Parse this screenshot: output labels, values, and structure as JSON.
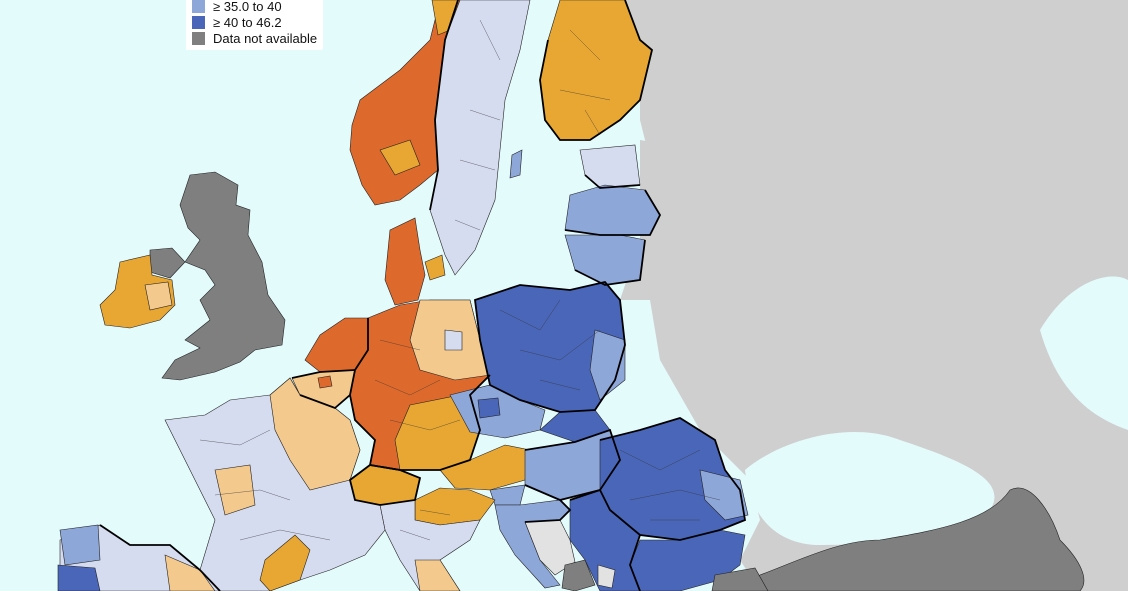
{
  "legend": {
    "items": [
      {
        "label": "≥ 35.0 to 40",
        "color": "#8ea7d9"
      },
      {
        "label": "≥ 40 to 46.2",
        "color": "#4a66b8"
      },
      {
        "label": "Data not available",
        "color": "#7f7f7f"
      }
    ]
  },
  "colors": {
    "sea": "#e4fbfc",
    "non_eu_land": "#cfcfcf",
    "not_available": "#7f7f7f",
    "orange_dark": "#dd6a2c",
    "orange": "#e8a733",
    "orange_light": "#f3c98d",
    "blue_pale": "#d6dcef",
    "blue_light": "#8ea7d9",
    "blue_dark": "#4a66b8",
    "light_grey_region": "#e2e2e2"
  }
}
